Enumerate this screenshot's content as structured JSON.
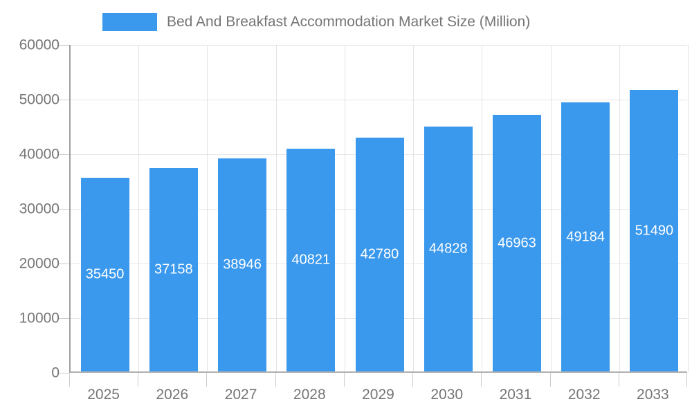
{
  "chart_data": {
    "type": "bar",
    "title": "Bed And Breakfast Accommodation Market Size (Million)",
    "categories": [
      "2025",
      "2026",
      "2027",
      "2028",
      "2029",
      "2030",
      "2031",
      "2032",
      "2033"
    ],
    "values": [
      35450,
      37158,
      38946,
      40821,
      42780,
      44828,
      46963,
      49184,
      51490
    ],
    "bar_labels": [
      "35450",
      "37158",
      "38946",
      "40821",
      "42780",
      "44828",
      "46963",
      "49184",
      "51490"
    ],
    "xlabel": "",
    "ylabel": "",
    "ylim": [
      0,
      60000
    ],
    "ytick_interval": 10000,
    "ytick_labels": [
      "0",
      "10000",
      "20000",
      "30000",
      "40000",
      "50000",
      "60000"
    ],
    "grid": true,
    "legend_position": "top",
    "legend_entries": [
      {
        "label": "Bed And Breakfast Accommodation Market Size (Million)",
        "color": "#3B99ED"
      }
    ]
  },
  "colors": {
    "bar": "#3B99ED",
    "bar_label_text": "#ffffff",
    "axis_text": "#757575",
    "gridline": "#e6e6e6",
    "axis_line": "#9e9e9e",
    "baseline": "#b0b0b0",
    "tick": "#cccccc",
    "background": "#ffffff"
  }
}
